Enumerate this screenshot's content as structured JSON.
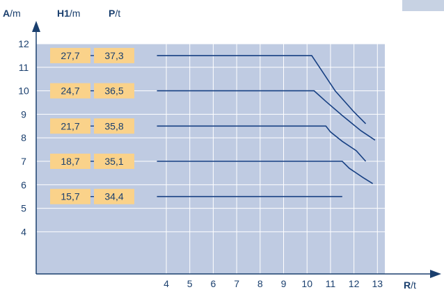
{
  "chart_data": {
    "type": "line",
    "headers": {
      "a": {
        "symbol": "A",
        "unit": "/m"
      },
      "h1": {
        "symbol": "H1",
        "unit": "/m"
      },
      "p": {
        "symbol": "P",
        "unit": "/t"
      },
      "r": {
        "symbol": "R",
        "unit": "/t"
      }
    },
    "xlim": [
      3,
      13.5
    ],
    "ylim": [
      2.5,
      12
    ],
    "x_ticks": [
      "4",
      "5",
      "6",
      "7",
      "8",
      "9",
      "10",
      "11",
      "12",
      "13"
    ],
    "y_ticks": [
      "12",
      "11",
      "10",
      "9",
      "8",
      "7",
      "6",
      "5",
      "4"
    ],
    "grid": true,
    "series": [
      {
        "level": 11.5,
        "h1": "27,7",
        "p": "37,3",
        "points": [
          [
            3.6,
            11.5
          ],
          [
            10.2,
            11.5
          ],
          [
            10.6,
            10.9
          ],
          [
            11.2,
            10.0
          ],
          [
            12.0,
            9.1
          ],
          [
            12.5,
            8.6
          ]
        ]
      },
      {
        "level": 10.0,
        "h1": "24,7",
        "p": "36,5",
        "points": [
          [
            3.6,
            10.0
          ],
          [
            10.3,
            10.0
          ],
          [
            10.8,
            9.55
          ],
          [
            11.5,
            8.95
          ],
          [
            12.3,
            8.3
          ],
          [
            12.9,
            7.9
          ]
        ]
      },
      {
        "level": 8.5,
        "h1": "21,7",
        "p": "35,8",
        "points": [
          [
            3.6,
            8.5
          ],
          [
            10.8,
            8.5
          ],
          [
            11.0,
            8.25
          ],
          [
            11.5,
            7.85
          ],
          [
            12.1,
            7.45
          ],
          [
            12.5,
            7.0
          ]
        ]
      },
      {
        "level": 7.0,
        "h1": "18,7",
        "p": "35,1",
        "points": [
          [
            3.6,
            7.0
          ],
          [
            11.5,
            7.0
          ],
          [
            11.8,
            6.7
          ],
          [
            12.4,
            6.3
          ],
          [
            12.8,
            6.05
          ]
        ]
      },
      {
        "level": 5.5,
        "h1": "15,7",
        "p": "34,4",
        "points": [
          [
            3.6,
            5.5
          ],
          [
            11.5,
            5.5
          ]
        ]
      }
    ],
    "colors": {
      "plot_bg": "#bfcbe2",
      "grid": "#ffffff",
      "line": "#163f82",
      "label_bg": "#fad28a",
      "text": "#1a3f6e",
      "axis": "#1a3f6e",
      "corner": "#c7d2e3"
    }
  }
}
